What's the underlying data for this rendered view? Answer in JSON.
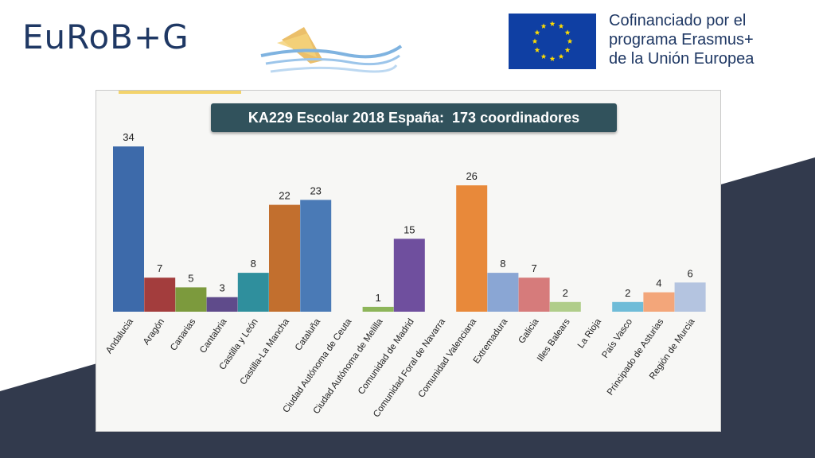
{
  "header": {
    "brand": "EuRoB+G",
    "eu_line1": "Cofinanciado por el",
    "eu_line2": "programa Erasmus+",
    "eu_line3": "de la Unión Europea"
  },
  "colors": {
    "dark_shape": "#323a4d",
    "brand": "#1f3864",
    "title_box": "#31525c",
    "eu_blue": "#0f3fa3",
    "eu_star": "#ffdd00"
  },
  "chart_data": {
    "type": "bar",
    "title": "KA229 Escolar 2018 España:  173 coordinadores",
    "xlabel": "",
    "ylabel": "",
    "ylim": [
      0,
      36
    ],
    "grid": false,
    "categories": [
      "Andalucia",
      "Aragón",
      "Canarias",
      "Cantabria",
      "Castilla y León",
      "Castilla-La Mancha",
      "Cataluña",
      "Ciudad Autónoma de Ceuta",
      "Ciudad Autónoma de Melilla",
      "Comunidad de Madrid",
      "Comunidad Foral de Navarra",
      "Comunidad Valenciana",
      "Extremadura",
      "Galicia",
      "Illes Balears",
      "La Rioja",
      "País Vasco",
      "Principado de Asturias",
      "Región de Murcia"
    ],
    "values": [
      34,
      7,
      5,
      3,
      8,
      22,
      23,
      null,
      1,
      15,
      null,
      26,
      8,
      7,
      2,
      null,
      2,
      4,
      6
    ],
    "colors": [
      "#3d6aaa",
      "#a33d3d",
      "#7c9a3d",
      "#5f4b8b",
      "#2f8f9d",
      "#c26f2e",
      "#4a7ab6",
      "#3d6aaa",
      "#8db559",
      "#6f4f9e",
      "#3a9ab0",
      "#e8893a",
      "#8aa6d4",
      "#d67b7b",
      "#b0cd8a",
      "#a797c3",
      "#6fbcd8",
      "#f3a67a",
      "#b4c4e0"
    ]
  }
}
